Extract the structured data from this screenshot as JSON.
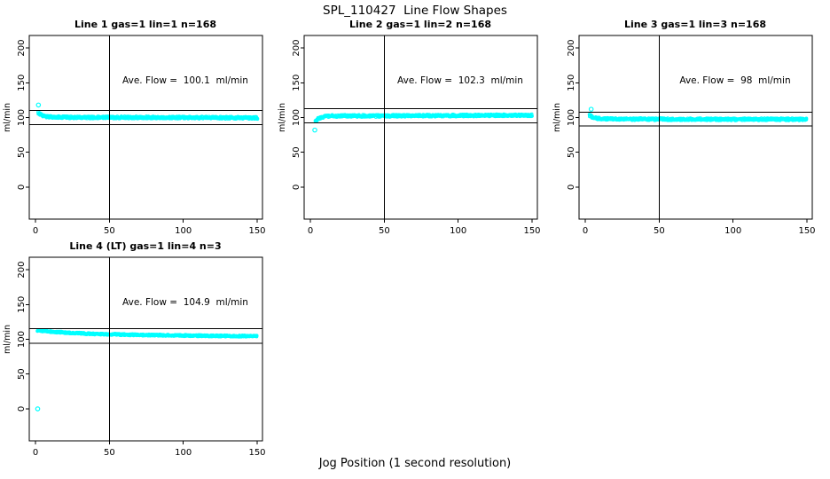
{
  "page": {
    "title": "SPL_110427  Line Flow Shapes",
    "xlabel": "Jog Position (1 second resolution)"
  },
  "colors": {
    "points": "#00ffff",
    "axis": "#000000",
    "background": "#ffffff"
  },
  "chart_data": [
    {
      "type": "scatter",
      "title": "Line 1 gas=1 lin=1 n=168",
      "annotation": "Ave. Flow =  100.1  ml/min",
      "ave_flow": 100.1,
      "ylabel": "ml/min",
      "xticks": [
        0,
        50,
        100,
        150
      ],
      "yticks": [
        0,
        50,
        100,
        150,
        200
      ],
      "xlim": [
        -4.2,
        153.6
      ],
      "ylim": [
        -46,
        218
      ],
      "hlines": [
        110.1,
        90.1
      ],
      "vlines": [
        50
      ],
      "outliers": [
        [
          2,
          118
        ]
      ],
      "band": {
        "profile": [
          [
            2,
            106.5
          ],
          [
            4,
            103.5
          ],
          [
            7,
            101.5
          ],
          [
            12,
            100.8
          ],
          [
            25,
            100.3
          ],
          [
            60,
            100.2
          ],
          [
            100,
            100
          ],
          [
            130,
            99.7
          ],
          [
            150,
            99.5
          ]
        ],
        "half_width": 1.6,
        "x_start": 2,
        "x_end": 150
      }
    },
    {
      "type": "scatter",
      "title": "Line 2 gas=1 lin=2 n=168",
      "annotation": "Ave. Flow =  102.3  ml/min",
      "ave_flow": 102.3,
      "ylabel": "ml/min",
      "xticks": [
        0,
        50,
        100,
        150
      ],
      "yticks": [
        0,
        50,
        100,
        150,
        200
      ],
      "xlim": [
        -4.2,
        153.6
      ],
      "ylim": [
        -46,
        218
      ],
      "hlines": [
        112.5,
        92.1
      ],
      "vlines": [
        50
      ],
      "outliers": [
        [
          3,
          82
        ]
      ],
      "band": {
        "profile": [
          [
            3.5,
            94.5
          ],
          [
            5,
            98
          ],
          [
            7,
            100
          ],
          [
            10,
            101.5
          ],
          [
            15,
            102.3
          ],
          [
            30,
            102.4
          ],
          [
            60,
            102.5
          ],
          [
            100,
            103
          ],
          [
            130,
            103.2
          ],
          [
            150,
            103.3
          ]
        ],
        "half_width": 1.6,
        "x_start": 3.5,
        "x_end": 150
      }
    },
    {
      "type": "scatter",
      "title": "Line 3 gas=1 lin=3 n=168",
      "annotation": "Ave. Flow =  98  ml/min",
      "ave_flow": 98,
      "ylabel": "ml/min",
      "xticks": [
        0,
        50,
        100,
        150
      ],
      "yticks": [
        0,
        50,
        100,
        150,
        200
      ],
      "xlim": [
        -4.2,
        153.6
      ],
      "ylim": [
        -46,
        218
      ],
      "hlines": [
        107.8,
        88.2
      ],
      "vlines": [
        50
      ],
      "outliers": [
        [
          4,
          112
        ]
      ],
      "band": {
        "profile": [
          [
            3,
            103
          ],
          [
            5,
            100.5
          ],
          [
            8,
            99
          ],
          [
            13,
            98.2
          ],
          [
            25,
            97.8
          ],
          [
            60,
            97.6
          ],
          [
            100,
            97.5
          ],
          [
            150,
            97.5
          ]
        ],
        "half_width": 1.6,
        "x_start": 3,
        "x_end": 150
      }
    },
    {
      "type": "scatter",
      "title": "Line 4 (LT) gas=1 lin=4 n=3",
      "annotation": "Ave. Flow =  104.9  ml/min",
      "ave_flow": 104.9,
      "ylabel": "ml/min",
      "xticks": [
        0,
        50,
        100,
        150
      ],
      "yticks": [
        0,
        50,
        100,
        150,
        200
      ],
      "xlim": [
        -4.2,
        153.6
      ],
      "ylim": [
        -46,
        218
      ],
      "hlines": [
        115.4,
        94.4
      ],
      "vlines": [
        50
      ],
      "outliers": [
        [
          1.5,
          0
        ]
      ],
      "band": {
        "profile": [
          [
            1.5,
            112.5
          ],
          [
            8,
            111.5
          ],
          [
            18,
            110
          ],
          [
            28,
            108.8
          ],
          [
            40,
            107.8
          ],
          [
            55,
            107
          ],
          [
            70,
            106.3
          ],
          [
            90,
            105.7
          ],
          [
            110,
            105.2
          ],
          [
            130,
            104.8
          ],
          [
            150,
            104.5
          ]
        ],
        "half_width": 1.1,
        "x_start": 1.5,
        "x_end": 150
      }
    }
  ]
}
